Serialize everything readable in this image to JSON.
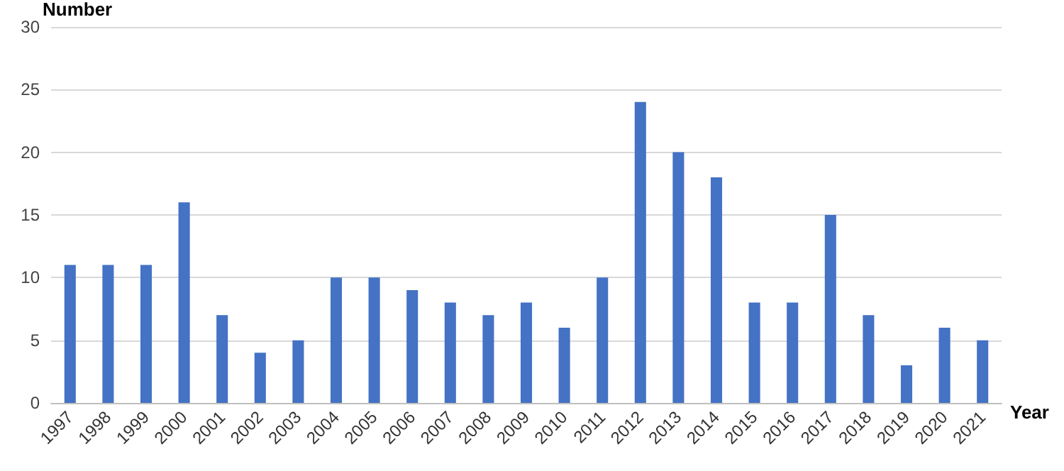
{
  "chart_data": {
    "type": "bar",
    "xlabel": "Year",
    "ylabel": "Number",
    "categories": [
      "1997",
      "1998",
      "1999",
      "2000",
      "2001",
      "2002",
      "2003",
      "2004",
      "2005",
      "2006",
      "2007",
      "2008",
      "2009",
      "2010",
      "2011",
      "2012",
      "2013",
      "2014",
      "2015",
      "2016",
      "2017",
      "2018",
      "2019",
      "2020",
      "2021"
    ],
    "values": [
      11,
      11,
      11,
      16,
      7,
      4,
      5,
      10,
      10,
      9,
      8,
      7,
      8,
      6,
      10,
      24,
      20,
      18,
      8,
      8,
      15,
      7,
      3,
      6,
      5
    ],
    "color": "#4472c4",
    "ylim": [
      0,
      30
    ],
    "yticks": [
      0,
      5,
      10,
      15,
      20,
      25,
      30
    ],
    "grid": "y"
  }
}
